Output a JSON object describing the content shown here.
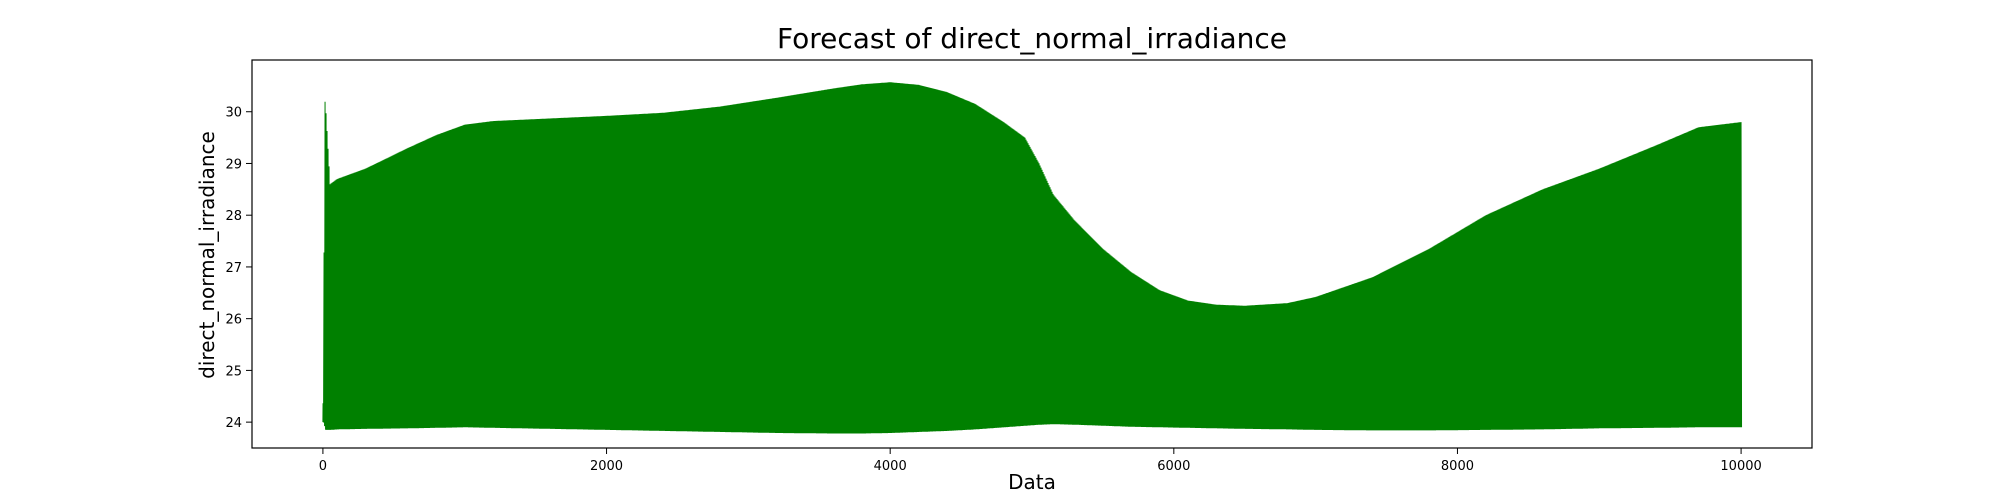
{
  "chart_data": {
    "type": "line",
    "title": "Forecast of direct_normal_irradiance",
    "xlabel": "Data",
    "ylabel": "direct_normal_irradiance",
    "xlim": [
      -500,
      10500
    ],
    "ylim": [
      23.5,
      31.0
    ],
    "x_ticks": [
      0,
      2000,
      4000,
      6000,
      8000,
      10000
    ],
    "y_ticks": [
      24,
      25,
      26,
      27,
      28,
      29,
      30
    ],
    "grid": false,
    "legend": "none",
    "color": "#008000",
    "series": [
      {
        "x": [
          0,
          15,
          50,
          100,
          300,
          600,
          800,
          1000,
          1200,
          1600,
          2000,
          2400,
          2800,
          3200,
          3600,
          3800,
          4000,
          4200,
          4400,
          4600,
          4800,
          4950,
          5050,
          5150,
          5300,
          5500,
          5700,
          5900,
          6100,
          6300,
          6500,
          6800,
          7000,
          7400,
          7800,
          8200,
          8600,
          9000,
          9400,
          9700,
          10000
        ],
        "upper": [
          24.1,
          30.3,
          28.6,
          28.7,
          28.9,
          29.3,
          29.55,
          29.75,
          29.82,
          29.87,
          29.92,
          29.98,
          30.1,
          30.27,
          30.45,
          30.53,
          30.57,
          30.52,
          30.38,
          30.15,
          29.8,
          29.5,
          29.0,
          28.4,
          27.9,
          27.35,
          26.9,
          26.55,
          26.35,
          26.27,
          26.25,
          26.3,
          26.42,
          26.8,
          27.35,
          28.0,
          28.5,
          28.9,
          29.35,
          29.7,
          29.8
        ],
        "lower": [
          24.0,
          23.85,
          23.85,
          23.86,
          23.87,
          23.88,
          23.89,
          23.9,
          23.89,
          23.87,
          23.85,
          23.83,
          23.81,
          23.79,
          23.78,
          23.78,
          23.79,
          23.81,
          23.83,
          23.86,
          23.9,
          23.93,
          23.95,
          23.96,
          23.95,
          23.93,
          23.91,
          23.9,
          23.89,
          23.88,
          23.87,
          23.86,
          23.85,
          23.84,
          23.84,
          23.85,
          23.86,
          23.88,
          23.89,
          23.9,
          23.9
        ],
        "baseline": 24.2
      }
    ]
  }
}
